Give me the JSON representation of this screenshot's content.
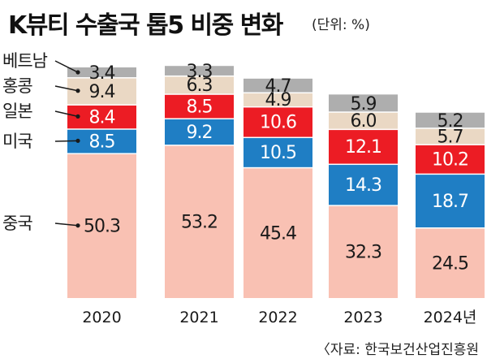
{
  "title": "K뷰티 수출국 톱5 비중 변화",
  "unit": "(단위: %)",
  "source": "〈자료: 한국보건산업진흥원",
  "colors": {
    "중국": "#f9c1b3",
    "미국": "#1f7ec4",
    "일본": "#ec1c24",
    "홍콩": "#ead8c4",
    "베트남": "#aeaeae"
  },
  "chart_data": {
    "type": "bar",
    "stacked": true,
    "categories": [
      "2020",
      "2021",
      "2022",
      "2023",
      "2024년"
    ],
    "series": [
      {
        "name": "중국",
        "values": [
          50.3,
          53.2,
          45.4,
          32.3,
          24.5
        ]
      },
      {
        "name": "미국",
        "values": [
          8.5,
          9.2,
          10.5,
          14.3,
          18.7
        ]
      },
      {
        "name": "일본",
        "values": [
          8.4,
          8.5,
          10.6,
          12.1,
          10.2
        ]
      },
      {
        "name": "홍콩",
        "values": [
          9.4,
          6.3,
          4.9,
          6.0,
          5.7
        ]
      },
      {
        "name": "베트남",
        "values": [
          3.4,
          3.3,
          4.7,
          5.9,
          5.2
        ]
      }
    ],
    "legend": "left"
  }
}
